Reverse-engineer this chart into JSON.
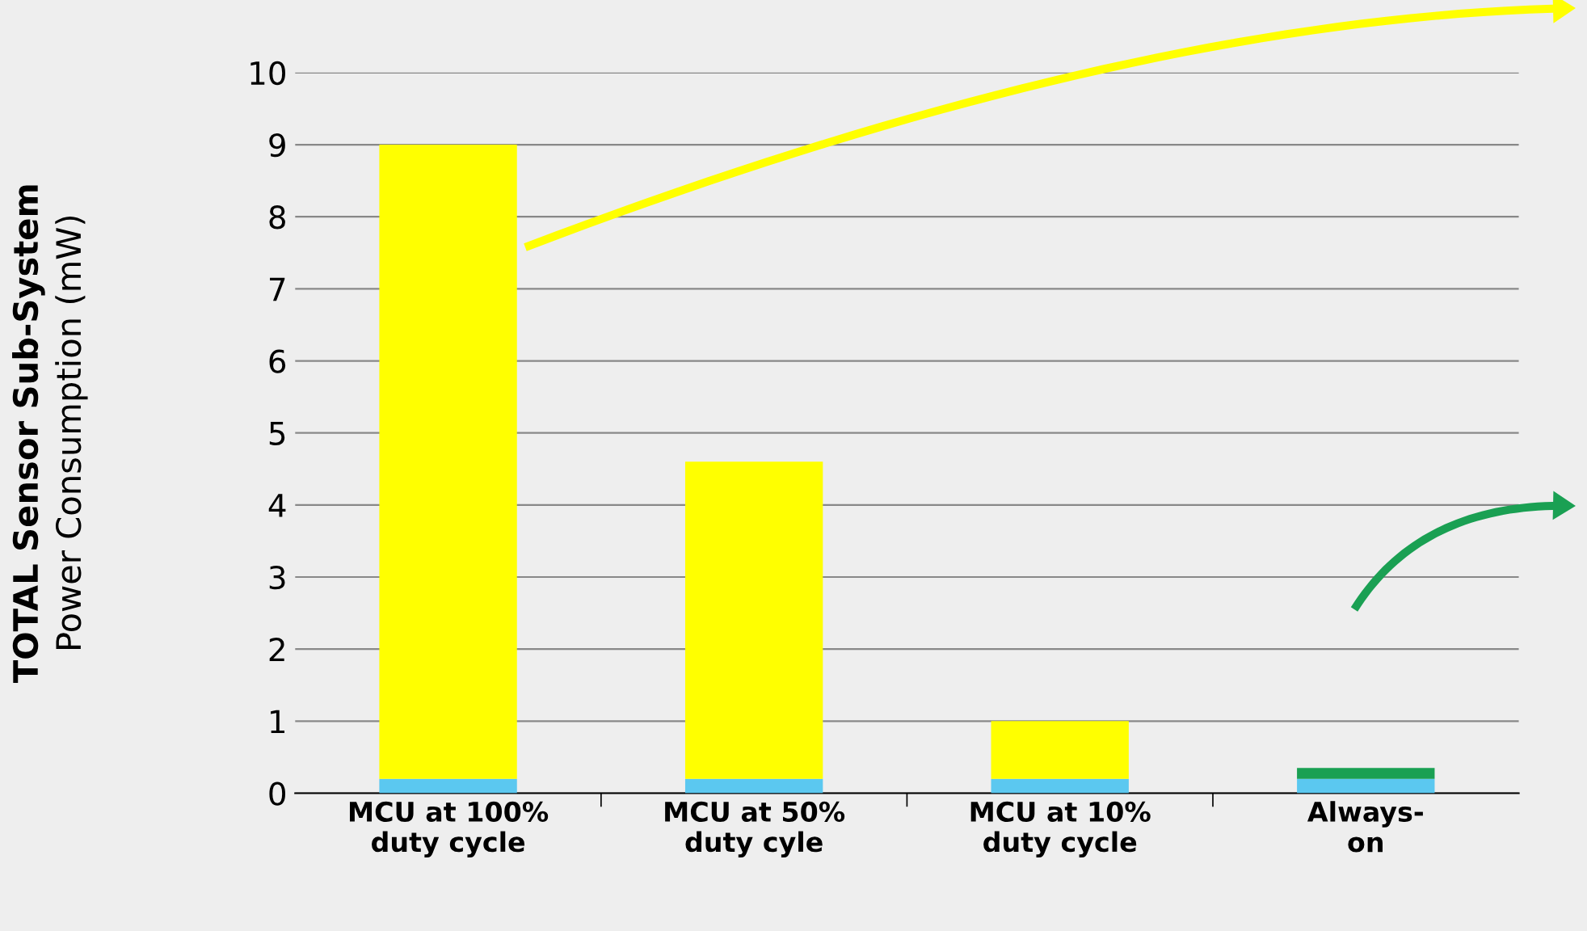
{
  "chart_data": {
    "type": "bar",
    "stacked": true,
    "ylabel": "TOTAL Sensor Sub-System\nPower Consumption (mW)",
    "categories": [
      "MCU at 100%\nduty cycle",
      "MCU at 50%\nduty cyle",
      "MCU at 10%\nduty cycle",
      "Always-\non"
    ],
    "series": [
      {
        "color": "#5bc8f0",
        "values": [
          0.2,
          0.2,
          0.2,
          0.2
        ]
      },
      {
        "color": "#ffff00",
        "values": [
          8.8,
          4.4,
          0.8,
          0
        ]
      },
      {
        "color": "#1aa053",
        "values": [
          0,
          0,
          0,
          0.15
        ]
      }
    ],
    "ylim": [
      0,
      10
    ],
    "yticks": [
      0,
      1,
      2,
      3,
      4,
      5,
      6,
      7,
      8,
      9,
      10
    ],
    "grid": "y"
  }
}
